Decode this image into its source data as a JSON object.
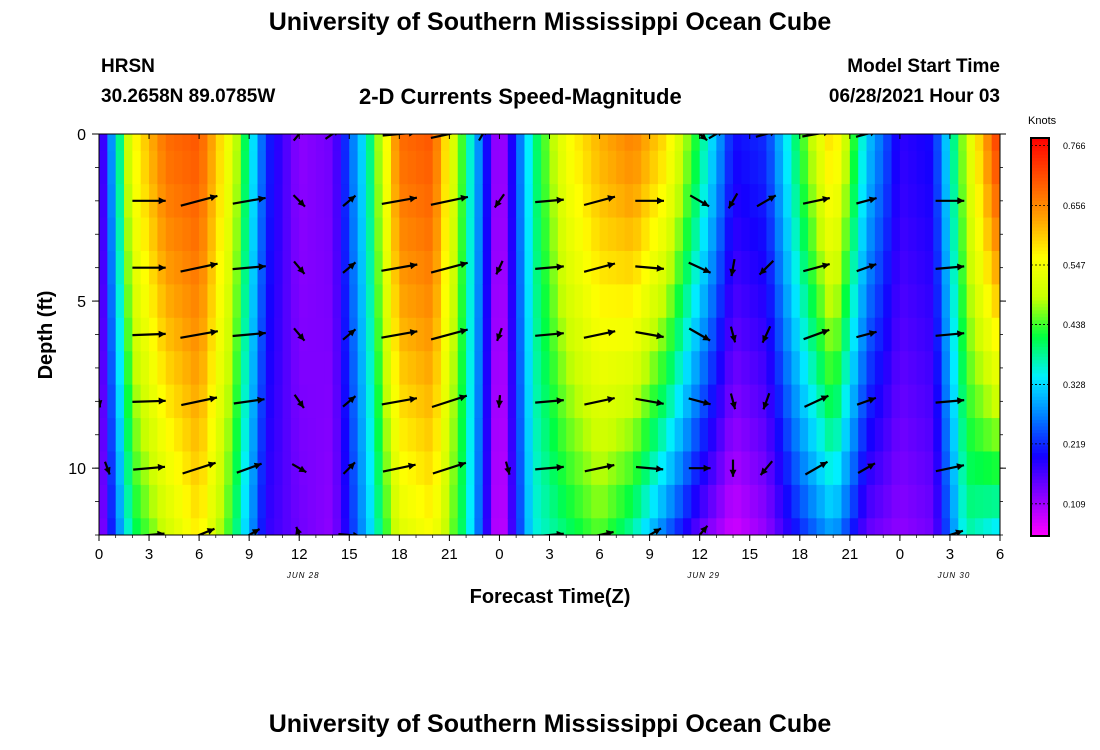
{
  "title": "University of Southern Mississippi Ocean Cube",
  "footer_title": "University of Southern Mississippi Ocean Cube",
  "station": {
    "name": "HRSN",
    "coords": "30.2658N  89.0785W"
  },
  "subtitle": "2-D Currents Speed-Magnitude",
  "model": {
    "label": "Model Start Time",
    "time": "06/28/2021 Hour 03"
  },
  "chart_data": {
    "type": "heatmap",
    "title": "2-D Currents Speed-Magnitude",
    "xlabel": "Forecast Time(Z)",
    "ylabel": "Depth (ft)",
    "x_tick_labels": [
      "0",
      "3",
      "6",
      "9",
      "12",
      "15",
      "18",
      "21",
      "0",
      "3",
      "6",
      "9",
      "12",
      "15",
      "18",
      "21",
      "0",
      "3",
      "6"
    ],
    "x_hours": [
      0,
      54
    ],
    "date_labels": [
      {
        "hour": 12,
        "text": "JUN 28"
      },
      {
        "hour": 36,
        "text": "JUN 29"
      },
      {
        "hour": 51,
        "text": "JUN 30"
      }
    ],
    "y_tick_labels": [
      "0",
      "5",
      "10"
    ],
    "y_ticks": [
      0,
      5,
      10
    ],
    "ylim": [
      0,
      12
    ],
    "y_inverted": true,
    "colorbar": {
      "unit": "Knots",
      "min": 0.05,
      "max": 0.78,
      "labels": [
        "0.766",
        "0.656",
        "0.547",
        "0.438",
        "0.328",
        "0.219",
        "0.109"
      ],
      "label_values": [
        0.766,
        0.656,
        0.547,
        0.438,
        0.328,
        0.219,
        0.109
      ],
      "colors": [
        "#ff00ff",
        "#8a00ff",
        "#1400ff",
        "#0080ff",
        "#00f0ff",
        "#00ff40",
        "#c8ff00",
        "#ffff00",
        "#ffa000",
        "#ff5000",
        "#ff0000"
      ]
    },
    "depths_ft": [
      0,
      1,
      2,
      3,
      4,
      5,
      6,
      7,
      8,
      9,
      10,
      11,
      12
    ],
    "speed_profiles": {
      "hours": [
        0,
        2,
        4,
        6,
        8,
        10,
        12,
        14,
        16,
        18,
        20,
        22,
        24,
        26,
        28,
        30,
        32,
        34,
        36,
        38,
        40,
        42,
        44,
        46,
        48,
        50,
        52,
        54
      ],
      "surface": [
        0.12,
        0.55,
        0.68,
        0.7,
        0.52,
        0.22,
        0.12,
        0.14,
        0.35,
        0.68,
        0.7,
        0.4,
        0.08,
        0.38,
        0.55,
        0.62,
        0.66,
        0.58,
        0.4,
        0.2,
        0.22,
        0.42,
        0.6,
        0.32,
        0.18,
        0.2,
        0.5,
        0.74
      ],
      "bottom": [
        0.1,
        0.4,
        0.5,
        0.58,
        0.42,
        0.18,
        0.14,
        0.12,
        0.3,
        0.52,
        0.56,
        0.38,
        0.06,
        0.35,
        0.4,
        0.45,
        0.38,
        0.26,
        0.15,
        0.08,
        0.12,
        0.22,
        0.3,
        0.15,
        0.12,
        0.14,
        0.38,
        0.34
      ]
    },
    "vectors": [
      {
        "hour": 0,
        "depth": 8,
        "speed": 0.1,
        "dir": 170
      },
      {
        "hour": 0.5,
        "depth": 10,
        "speed": 0.12,
        "dir": 160
      },
      {
        "hour": 3,
        "depth": 2,
        "speed": 0.55,
        "dir": 90
      },
      {
        "hour": 3,
        "depth": 4,
        "speed": 0.55,
        "dir": 90
      },
      {
        "hour": 3,
        "depth": 6,
        "speed": 0.55,
        "dir": 88
      },
      {
        "hour": 3,
        "depth": 8,
        "speed": 0.55,
        "dir": 88
      },
      {
        "hour": 3,
        "depth": 10,
        "speed": 0.52,
        "dir": 85
      },
      {
        "hour": 3,
        "depth": 12,
        "speed": 0.5,
        "dir": 85
      },
      {
        "hour": 6,
        "depth": 2,
        "speed": 0.65,
        "dir": 75
      },
      {
        "hour": 6,
        "depth": 4,
        "speed": 0.65,
        "dir": 78
      },
      {
        "hour": 6,
        "depth": 6,
        "speed": 0.65,
        "dir": 80
      },
      {
        "hour": 6,
        "depth": 8,
        "speed": 0.62,
        "dir": 78
      },
      {
        "hour": 6,
        "depth": 10,
        "speed": 0.58,
        "dir": 72
      },
      {
        "hour": 6,
        "depth": 12,
        "speed": 0.55,
        "dir": 68
      },
      {
        "hour": 9,
        "depth": 2,
        "speed": 0.55,
        "dir": 80
      },
      {
        "hour": 9,
        "depth": 4,
        "speed": 0.55,
        "dir": 85
      },
      {
        "hour": 9,
        "depth": 6,
        "speed": 0.55,
        "dir": 85
      },
      {
        "hour": 9,
        "depth": 8,
        "speed": 0.5,
        "dir": 82
      },
      {
        "hour": 9,
        "depth": 10,
        "speed": 0.4,
        "dir": 70
      },
      {
        "hour": 9,
        "depth": 12,
        "speed": 0.35,
        "dir": 60
      },
      {
        "hour": 12,
        "depth": 0,
        "speed": 0.2,
        "dir": 40
      },
      {
        "hour": 12,
        "depth": 2,
        "speed": 0.18,
        "dir": 135
      },
      {
        "hour": 12,
        "depth": 4,
        "speed": 0.18,
        "dir": 140
      },
      {
        "hour": 12,
        "depth": 6,
        "speed": 0.18,
        "dir": 140
      },
      {
        "hour": 12,
        "depth": 8,
        "speed": 0.18,
        "dir": 145
      },
      {
        "hour": 12,
        "depth": 10,
        "speed": 0.18,
        "dir": 120
      },
      {
        "hour": 12,
        "depth": 12,
        "speed": 0.2,
        "dir": 340
      },
      {
        "hour": 14,
        "depth": 0,
        "speed": 0.2,
        "dir": 55
      },
      {
        "hour": 15,
        "depth": 2,
        "speed": 0.18,
        "dir": 50
      },
      {
        "hour": 15,
        "depth": 4,
        "speed": 0.18,
        "dir": 50
      },
      {
        "hour": 15,
        "depth": 6,
        "speed": 0.18,
        "dir": 50
      },
      {
        "hour": 15,
        "depth": 8,
        "speed": 0.18,
        "dir": 50
      },
      {
        "hour": 15,
        "depth": 10,
        "speed": 0.18,
        "dir": 45
      },
      {
        "hour": 15,
        "depth": 12,
        "speed": 0.3,
        "dir": 95
      },
      {
        "hour": 18,
        "depth": 0,
        "speed": 0.55,
        "dir": 85
      },
      {
        "hour": 18,
        "depth": 2,
        "speed": 0.6,
        "dir": 80
      },
      {
        "hour": 18,
        "depth": 4,
        "speed": 0.62,
        "dir": 80
      },
      {
        "hour": 18,
        "depth": 6,
        "speed": 0.62,
        "dir": 80
      },
      {
        "hour": 18,
        "depth": 8,
        "speed": 0.6,
        "dir": 80
      },
      {
        "hour": 18,
        "depth": 10,
        "speed": 0.55,
        "dir": 78
      },
      {
        "hour": 21,
        "depth": 0,
        "speed": 0.65,
        "dir": 78
      },
      {
        "hour": 21,
        "depth": 2,
        "speed": 0.65,
        "dir": 78
      },
      {
        "hour": 21,
        "depth": 4,
        "speed": 0.65,
        "dir": 75
      },
      {
        "hour": 21,
        "depth": 6,
        "speed": 0.65,
        "dir": 75
      },
      {
        "hour": 21,
        "depth": 8,
        "speed": 0.62,
        "dir": 72
      },
      {
        "hour": 21,
        "depth": 10,
        "speed": 0.58,
        "dir": 72
      },
      {
        "hour": 23,
        "depth": 0,
        "speed": 0.15,
        "dir": 30
      },
      {
        "hour": 24,
        "depth": 2,
        "speed": 0.18,
        "dir": 215
      },
      {
        "hour": 24,
        "depth": 4,
        "speed": 0.15,
        "dir": 205
      },
      {
        "hour": 24,
        "depth": 6,
        "speed": 0.12,
        "dir": 200
      },
      {
        "hour": 24,
        "depth": 8,
        "speed": 0.1,
        "dir": 185
      },
      {
        "hour": 24.5,
        "depth": 10,
        "speed": 0.12,
        "dir": 165
      },
      {
        "hour": 27,
        "depth": 2,
        "speed": 0.45,
        "dir": 85
      },
      {
        "hour": 27,
        "depth": 4,
        "speed": 0.45,
        "dir": 85
      },
      {
        "hour": 27,
        "depth": 6,
        "speed": 0.45,
        "dir": 85
      },
      {
        "hour": 27,
        "depth": 8,
        "speed": 0.45,
        "dir": 85
      },
      {
        "hour": 27,
        "depth": 10,
        "speed": 0.45,
        "dir": 85
      },
      {
        "hour": 27,
        "depth": 12,
        "speed": 0.45,
        "dir": 85
      },
      {
        "hour": 30,
        "depth": 2,
        "speed": 0.52,
        "dir": 75
      },
      {
        "hour": 30,
        "depth": 4,
        "speed": 0.52,
        "dir": 75
      },
      {
        "hour": 30,
        "depth": 6,
        "speed": 0.52,
        "dir": 78
      },
      {
        "hour": 30,
        "depth": 8,
        "speed": 0.5,
        "dir": 78
      },
      {
        "hour": 30,
        "depth": 10,
        "speed": 0.48,
        "dir": 78
      },
      {
        "hour": 30,
        "depth": 12,
        "speed": 0.45,
        "dir": 78
      },
      {
        "hour": 33,
        "depth": 2,
        "speed": 0.45,
        "dir": 90
      },
      {
        "hour": 33,
        "depth": 4,
        "speed": 0.45,
        "dir": 95
      },
      {
        "hour": 33,
        "depth": 6,
        "speed": 0.45,
        "dir": 100
      },
      {
        "hour": 33,
        "depth": 8,
        "speed": 0.45,
        "dir": 100
      },
      {
        "hour": 33,
        "depth": 10,
        "speed": 0.42,
        "dir": 95
      },
      {
        "hour": 33,
        "depth": 12,
        "speed": 0.4,
        "dir": 60
      },
      {
        "hour": 36,
        "depth": 0,
        "speed": 0.25,
        "dir": 130
      },
      {
        "hour": 36,
        "depth": 2,
        "speed": 0.3,
        "dir": 120
      },
      {
        "hour": 36,
        "depth": 4,
        "speed": 0.35,
        "dir": 115
      },
      {
        "hour": 36,
        "depth": 6,
        "speed": 0.35,
        "dir": 120
      },
      {
        "hour": 36,
        "depth": 8,
        "speed": 0.32,
        "dir": 105
      },
      {
        "hour": 36,
        "depth": 10,
        "speed": 0.3,
        "dir": 90
      },
      {
        "hour": 36,
        "depth": 12,
        "speed": 0.35,
        "dir": 40
      },
      {
        "hour": 37,
        "depth": 0,
        "speed": 0.2,
        "dir": 60
      },
      {
        "hour": 38,
        "depth": 2,
        "speed": 0.2,
        "dir": 210
      },
      {
        "hour": 38,
        "depth": 4,
        "speed": 0.2,
        "dir": 190
      },
      {
        "hour": 38,
        "depth": 6,
        "speed": 0.18,
        "dir": 165
      },
      {
        "hour": 38,
        "depth": 8,
        "speed": 0.18,
        "dir": 165
      },
      {
        "hour": 38,
        "depth": 10,
        "speed": 0.2,
        "dir": 180
      },
      {
        "hour": 40,
        "depth": 0,
        "speed": 0.3,
        "dir": 75
      },
      {
        "hour": 40,
        "depth": 2,
        "speed": 0.3,
        "dir": 60
      },
      {
        "hour": 40,
        "depth": 4,
        "speed": 0.25,
        "dir": 225
      },
      {
        "hour": 40,
        "depth": 6,
        "speed": 0.22,
        "dir": 205
      },
      {
        "hour": 40,
        "depth": 8,
        "speed": 0.2,
        "dir": 200
      },
      {
        "hour": 40,
        "depth": 10,
        "speed": 0.22,
        "dir": 220
      },
      {
        "hour": 43,
        "depth": 0,
        "speed": 0.45,
        "dir": 80
      },
      {
        "hour": 43,
        "depth": 2,
        "speed": 0.42,
        "dir": 78
      },
      {
        "hour": 43,
        "depth": 4,
        "speed": 0.42,
        "dir": 75
      },
      {
        "hour": 43,
        "depth": 6,
        "speed": 0.42,
        "dir": 70
      },
      {
        "hour": 43,
        "depth": 8,
        "speed": 0.4,
        "dir": 65
      },
      {
        "hour": 43,
        "depth": 10,
        "speed": 0.38,
        "dir": 60
      },
      {
        "hour": 46,
        "depth": 0,
        "speed": 0.3,
        "dir": 75
      },
      {
        "hour": 46,
        "depth": 2,
        "speed": 0.28,
        "dir": 75
      },
      {
        "hour": 46,
        "depth": 4,
        "speed": 0.28,
        "dir": 70
      },
      {
        "hour": 46,
        "depth": 6,
        "speed": 0.28,
        "dir": 75
      },
      {
        "hour": 46,
        "depth": 8,
        "speed": 0.26,
        "dir": 70
      },
      {
        "hour": 46,
        "depth": 10,
        "speed": 0.25,
        "dir": 60
      },
      {
        "hour": 51,
        "depth": 2,
        "speed": 0.45,
        "dir": 90
      },
      {
        "hour": 51,
        "depth": 4,
        "speed": 0.45,
        "dir": 85
      },
      {
        "hour": 51,
        "depth": 6,
        "speed": 0.45,
        "dir": 85
      },
      {
        "hour": 51,
        "depth": 8,
        "speed": 0.45,
        "dir": 85
      },
      {
        "hour": 51,
        "depth": 10,
        "speed": 0.45,
        "dir": 78
      },
      {
        "hour": 51,
        "depth": 12,
        "speed": 0.42,
        "dir": 72
      }
    ]
  }
}
